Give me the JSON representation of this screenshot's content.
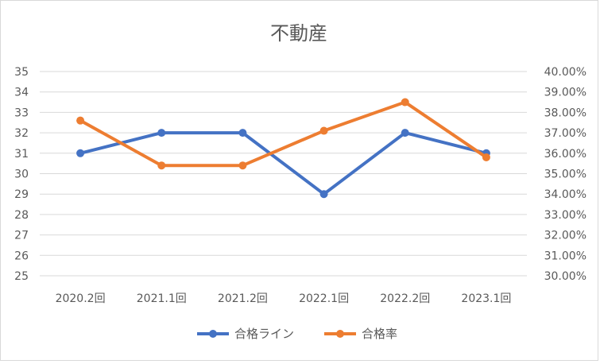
{
  "chart_data": {
    "type": "line",
    "title": "不動産",
    "categories": [
      "2020.2回",
      "2021.1回",
      "2021.2回",
      "2022.1回",
      "2022.2回",
      "2023.1回"
    ],
    "series": [
      {
        "name": "合格ライン",
        "axis": "left",
        "color": "#4472c4",
        "values": [
          31,
          32,
          32,
          29,
          32,
          31
        ]
      },
      {
        "name": "合格率",
        "axis": "right",
        "color": "#ed7d31",
        "values": [
          0.376,
          0.354,
          0.354,
          0.371,
          0.385,
          0.358
        ]
      }
    ],
    "y_left": {
      "min": 25,
      "max": 35,
      "step": 1,
      "ticks": [
        "25",
        "26",
        "27",
        "28",
        "29",
        "30",
        "31",
        "32",
        "33",
        "34",
        "35"
      ]
    },
    "y_right": {
      "min": 0.3,
      "max": 0.4,
      "step": 0.01,
      "ticks": [
        "30.00%",
        "31.00%",
        "32.00%",
        "33.00%",
        "34.00%",
        "35.00%",
        "36.00%",
        "37.00%",
        "38.00%",
        "39.00%",
        "40.00%"
      ]
    },
    "grid": true,
    "legend_position": "bottom"
  }
}
